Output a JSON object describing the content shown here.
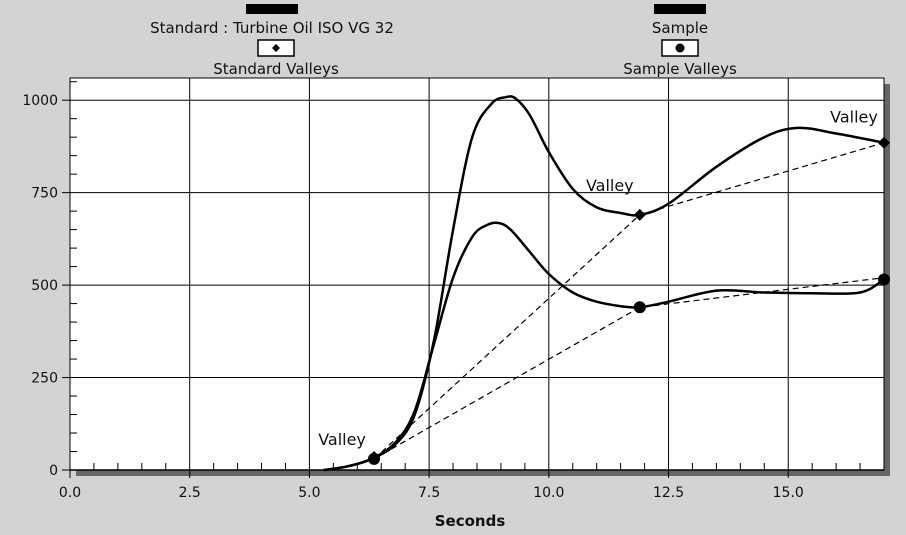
{
  "chart_data": {
    "type": "line",
    "xlabel": "Seconds",
    "ylabel": "",
    "xlim": [
      0,
      17
    ],
    "ylim": [
      0,
      1060
    ],
    "x_ticks": [
      0,
      2.5,
      5,
      7.5,
      10,
      12.5,
      15
    ],
    "x_tick_labels": [
      "0.0",
      "2.5",
      "5.0",
      "7.5",
      "10.0",
      "12.5",
      "15.0"
    ],
    "y_ticks": [
      0,
      250,
      500,
      750,
      1000
    ],
    "y_tick_labels": [
      "0",
      "250",
      "500",
      "750",
      "1000"
    ],
    "grid": true,
    "legend": {
      "standard_label": "Standard : Turbine Oil ISO VG 32",
      "standard_valleys_label": "Standard Valleys",
      "sample_label": "Sample",
      "sample_valleys_label": "Sample Valleys"
    },
    "series": [
      {
        "name": "Standard : Turbine Oil ISO VG 32",
        "x": [
          5.3,
          5.8,
          6.3,
          6.8,
          7.2,
          7.6,
          8.0,
          8.4,
          8.8,
          9.1,
          9.3,
          9.6,
          10.0,
          10.5,
          11.0,
          11.5,
          11.9,
          12.5,
          13.5,
          14.5,
          15.2,
          16.0,
          17.0
        ],
        "values": [
          0,
          10,
          30,
          70,
          150,
          350,
          650,
          900,
          990,
          1008,
          1005,
          960,
          860,
          760,
          710,
          695,
          690,
          720,
          820,
          900,
          925,
          910,
          885
        ]
      },
      {
        "name": "Sample",
        "x": [
          5.3,
          5.8,
          6.3,
          6.8,
          7.2,
          7.6,
          8.0,
          8.4,
          8.7,
          8.95,
          9.2,
          9.6,
          10.0,
          10.5,
          11.0,
          11.5,
          11.9,
          12.5,
          13.5,
          14.5,
          15.5,
          16.5,
          17.0
        ],
        "values": [
          0,
          10,
          30,
          75,
          160,
          340,
          520,
          630,
          662,
          668,
          650,
          590,
          530,
          480,
          455,
          443,
          440,
          455,
          485,
          480,
          478,
          480,
          515
        ]
      }
    ],
    "valley_lines": [
      {
        "x": [
          6.35,
          11.9,
          17.0
        ],
        "values": [
          30,
          690,
          885
        ]
      },
      {
        "x": [
          6.35,
          11.9,
          17.0
        ],
        "values": [
          30,
          440,
          520
        ]
      }
    ],
    "valley_points": {
      "standard": {
        "x": [
          6.35,
          11.9,
          17.0
        ],
        "values": [
          35,
          690,
          885
        ]
      },
      "sample": {
        "x": [
          6.35,
          11.9,
          17.0
        ],
        "values": [
          30,
          440,
          515
        ]
      }
    },
    "annotations": [
      {
        "text": "Valley",
        "x": 6.35,
        "y": 30
      },
      {
        "text": "Valley",
        "x": 11.9,
        "y": 690
      },
      {
        "text": "Valley",
        "x": 17.0,
        "y": 885
      }
    ]
  }
}
